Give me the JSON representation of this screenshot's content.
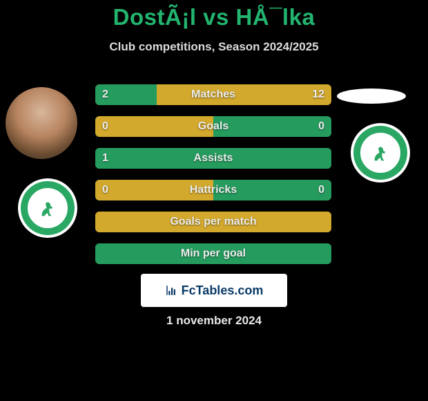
{
  "title": "DostÃ¡l vs HÅ¯lka",
  "subtitle": "Club competitions, Season 2024/2025",
  "date": "1 november 2024",
  "colors": {
    "green": "#259b5e",
    "gold": "#d2a82d",
    "row_gold_right": "#d2a82d",
    "row_green_left": "#259b5e"
  },
  "bars": [
    {
      "label": "Matches",
      "left_value": "2",
      "right_value": "12",
      "left_pct": 26,
      "right_color": "#d2a82d",
      "left_color": "#259b5e"
    },
    {
      "label": "Goals",
      "left_value": "0",
      "right_value": "0",
      "left_pct": 50,
      "right_color": "#259b5e",
      "left_color": "#d2a82d"
    },
    {
      "label": "Assists",
      "left_value": "1",
      "right_value": "",
      "left_pct": 100,
      "right_color": "#259b5e",
      "left_color": "#259b5e"
    },
    {
      "label": "Hattricks",
      "left_value": "0",
      "right_value": "0",
      "left_pct": 50,
      "right_color": "#259b5e",
      "left_color": "#d2a82d"
    },
    {
      "label": "Goals per match",
      "left_value": "",
      "right_value": "",
      "left_pct": 100,
      "right_color": "#d2a82d",
      "left_color": "#d2a82d"
    },
    {
      "label": "Min per goal",
      "left_value": "",
      "right_value": "",
      "left_pct": 100,
      "right_color": "#259b5e",
      "left_color": "#259b5e"
    }
  ],
  "banner_text": "FcTables.com"
}
